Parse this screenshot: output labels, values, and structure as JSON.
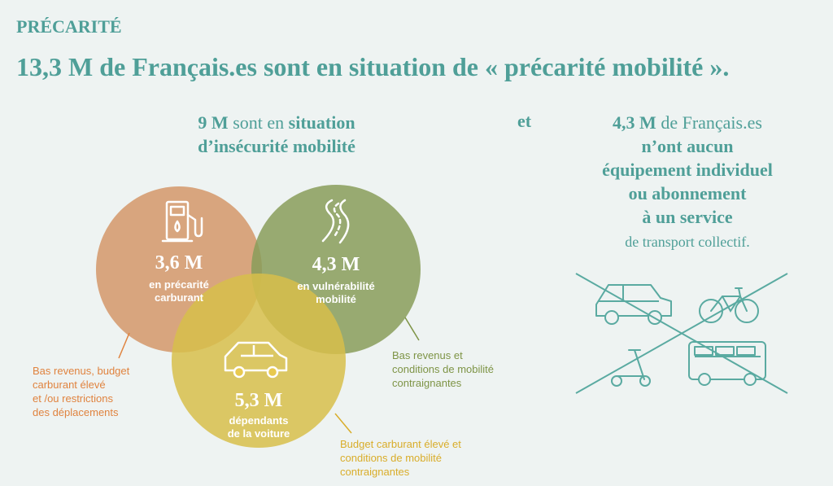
{
  "kicker": "PRÉCARITÉ",
  "headline": "13,3 M de Français.es sont en situation de « précarité mobilité ».",
  "insecurity": {
    "count": "9 M",
    "mid": " sont en ",
    "bold1": "situation",
    "bold2": "d’insécurité mobilité"
  },
  "circles": [
    {
      "value": "3,6 M",
      "label_line1": "en précarité",
      "label_line2": "carburant",
      "color": "#e5a478",
      "icon": "fuel-pump-icon"
    },
    {
      "value": "4,3 M",
      "label_line1": "en vulnérabilité",
      "label_line2": "mobilité",
      "color": "#93a65f",
      "icon": "road-icon"
    },
    {
      "value": "5,3 M",
      "label_line1": "dépendants",
      "label_line2": "de la voiture",
      "color": "#e8c94f",
      "icon": "car-icon"
    }
  ],
  "notes": {
    "fuel": [
      "Bas revenus, budget",
      "carburant élevé",
      "et /ou restrictions",
      "des déplacements"
    ],
    "vulnerability": [
      "Bas revenus et",
      "conditions de mobilité",
      "contraignantes"
    ],
    "car": [
      "Budget carburant élevé et",
      "conditions de mobilité",
      "contraignantes"
    ]
  },
  "connector": "et",
  "no_equipment": {
    "count": "4,3 M",
    "line1_rest": " de Français.es",
    "line2": "n’ont aucun",
    "line3": "équipement individuel",
    "line4": "ou abonnement",
    "line5": "à un service",
    "line6": "de transport collectif."
  },
  "transport_icons": [
    "car-icon",
    "bicycle-icon",
    "scooter-icon",
    "bus-icon"
  ],
  "colors": {
    "teal": "#4f9f98",
    "orange": "#e5a478",
    "green": "#93a65f",
    "yellow": "#e8c94f",
    "background": "#eef3f2",
    "note_orange": "#e0833f",
    "note_green": "#7e9446",
    "note_yellow": "#d9ad2a"
  }
}
